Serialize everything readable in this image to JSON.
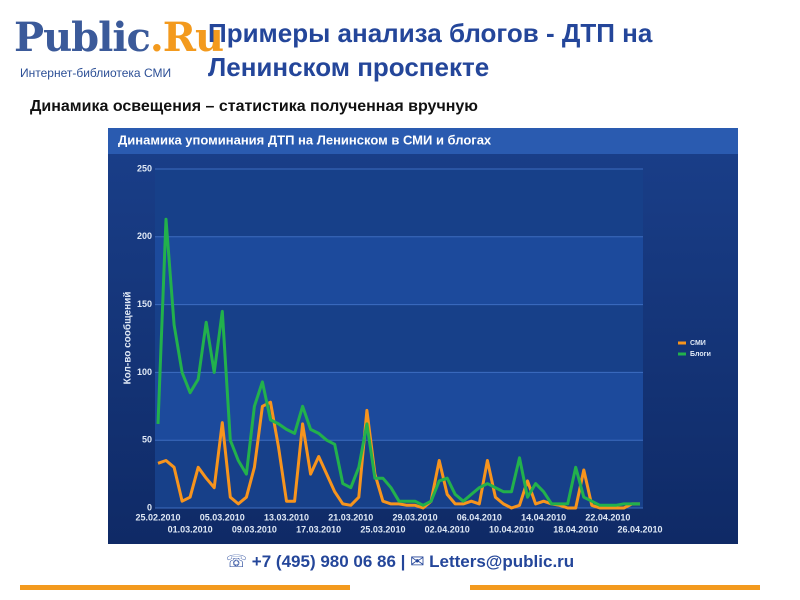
{
  "header": {
    "logo_name": "Public",
    "logo_suffix": ".Ru",
    "logo_tagline": "Интернет-библиотека СМИ",
    "title": "Примеры анализа блогов - ДТП на Ленинском проспекте",
    "subtitle": "Динамика освещения – статистика полученная вручную"
  },
  "chart_data": {
    "type": "line",
    "title": "Динамика упоминания ДТП на Ленинском в СМИ и блогах",
    "ylabel": "Кол-во сообщений",
    "categories": [
      "25.02.2010",
      null,
      null,
      null,
      "01.03.2010",
      null,
      null,
      null,
      "05.03.2010",
      null,
      null,
      null,
      "09.03.2010",
      null,
      null,
      null,
      "13.03.2010",
      null,
      null,
      null,
      "17.03.2010",
      null,
      null,
      null,
      "21.03.2010",
      null,
      null,
      null,
      "25.03.2010",
      null,
      null,
      null,
      "29.03.2010",
      null,
      null,
      null,
      "02.04.2010",
      null,
      null,
      null,
      "06.04.2010",
      null,
      null,
      null,
      "10.04.2010",
      null,
      null,
      null,
      "14.04.2010",
      null,
      null,
      null,
      "18.04.2010",
      null,
      null,
      null,
      "22.04.2010",
      null,
      null,
      null,
      "26.04.2010"
    ],
    "series": [
      {
        "name": "СМИ",
        "color": "#f7941d",
        "values": [
          33,
          35,
          30,
          5,
          8,
          30,
          22,
          15,
          63,
          8,
          3,
          8,
          30,
          75,
          78,
          45,
          5,
          5,
          62,
          25,
          38,
          25,
          12,
          3,
          2,
          8,
          72,
          25,
          5,
          3,
          3,
          2,
          2,
          0,
          5,
          35,
          10,
          3,
          3,
          5,
          3,
          35,
          8,
          3,
          0,
          2,
          20,
          3,
          5,
          3,
          2,
          0,
          0,
          28,
          2,
          0,
          0,
          0,
          0,
          3,
          3
        ]
      },
      {
        "name": "Блоги",
        "color": "#22b14c",
        "values": [
          62,
          213,
          135,
          100,
          85,
          95,
          137,
          100,
          145,
          50,
          35,
          25,
          75,
          93,
          65,
          62,
          58,
          55,
          75,
          58,
          55,
          50,
          47,
          18,
          15,
          30,
          62,
          22,
          22,
          15,
          5,
          5,
          5,
          2,
          5,
          20,
          22,
          10,
          5,
          10,
          15,
          18,
          15,
          12,
          12,
          37,
          8,
          18,
          12,
          3,
          3,
          3,
          30,
          8,
          5,
          2,
          2,
          2,
          3,
          3,
          3
        ]
      }
    ],
    "ylim": [
      0,
      250
    ],
    "yticks": [
      0,
      50,
      100,
      150,
      200,
      250
    ],
    "grid": true,
    "legend": "right"
  },
  "footer": {
    "contact": "☏ +7 (495) 980 06 86 | ✉ Letters@public.ru"
  }
}
